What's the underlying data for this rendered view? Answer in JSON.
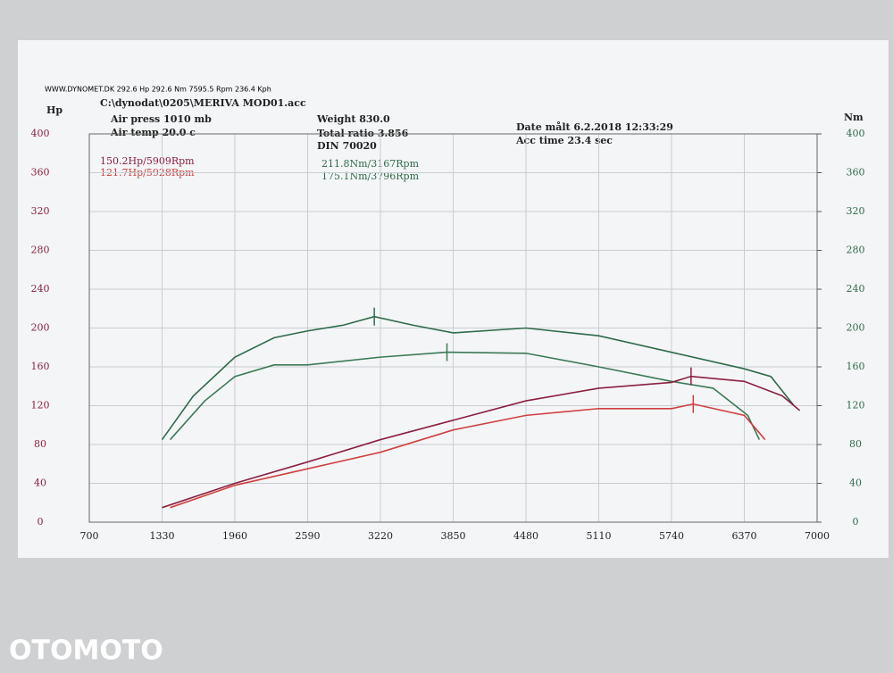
{
  "chart_data": {
    "type": "line",
    "header": "WWW.DYNOMET.DK  292.6 Hp 292.6 Nm 7595.5 Rpm 236.4 Kph",
    "file": "C:\\dynodat\\0205\\MERIVA MOD01.acc",
    "info": [
      "Air press  1010 mb",
      "Air temp  20.0 c",
      "Weight  830.0",
      "Total ratio 3.856",
      "DIN 70020",
      "Date målt 6.2.2018 12:33:29",
      "Acc time   23.4 sec"
    ],
    "ylabel": "Hp",
    "y2label": "Nm",
    "annotations": [
      {
        "text": "150.2Hp/5909Rpm",
        "color": "#8b2040"
      },
      {
        "text": "121.7Hp/5928Rpm",
        "color": "#d04040"
      },
      {
        "text": "211.8Nm/3167Rpm",
        "color": "#2e6b4a"
      },
      {
        "text": "175.1Nm/3796Rpm",
        "color": "#2e6b4a"
      }
    ],
    "xlim": [
      700,
      7000
    ],
    "xticks": [
      700,
      1330,
      1960,
      2590,
      3220,
      3850,
      4480,
      5110,
      5740,
      6370,
      7000
    ],
    "ylim": [
      0,
      400
    ],
    "yticks": [
      0,
      40,
      80,
      120,
      160,
      200,
      240,
      280,
      320,
      360,
      400
    ],
    "y2lim": [
      0,
      400
    ],
    "y2ticks": [
      0,
      40,
      80,
      120,
      160,
      200,
      240,
      280,
      320,
      360,
      400
    ],
    "grid": true,
    "series": [
      {
        "color": "#2e6b4a",
        "axis": "y2",
        "x": [
          1330,
          1600,
          1960,
          2300,
          2590,
          2900,
          3167,
          3500,
          3850,
          4480,
          5110,
          5740,
          6370,
          6600,
          6800
        ],
        "values": [
          85,
          130,
          170,
          190,
          197,
          203,
          211.8,
          203,
          195,
          200,
          192,
          175,
          158,
          150,
          120
        ]
      },
      {
        "color": "#3a7a55",
        "axis": "y2",
        "x": [
          1400,
          1700,
          1960,
          2300,
          2590,
          3220,
          3796,
          4480,
          5110,
          5740,
          6100,
          6400,
          6500
        ],
        "values": [
          85,
          125,
          150,
          162,
          162,
          170,
          175.1,
          174,
          160,
          145,
          138,
          110,
          85
        ]
      },
      {
        "color": "#8b2040",
        "axis": "y",
        "x": [
          1330,
          1960,
          2590,
          3220,
          3850,
          4480,
          5110,
          5740,
          5909,
          6370,
          6700,
          6850
        ],
        "values": [
          15,
          40,
          62,
          85,
          105,
          125,
          138,
          144,
          150.2,
          145,
          130,
          115
        ]
      },
      {
        "color": "#d04040",
        "axis": "y",
        "x": [
          1400,
          1960,
          2590,
          3220,
          3850,
          4480,
          5110,
          5740,
          5928,
          6370,
          6550
        ],
        "values": [
          15,
          38,
          55,
          72,
          95,
          110,
          117,
          117,
          121.7,
          110,
          85
        ]
      }
    ],
    "watermark": "OTOMOTO"
  }
}
